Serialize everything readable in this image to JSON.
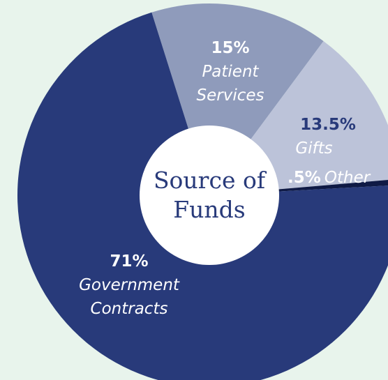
{
  "chart_data": {
    "type": "pie",
    "title": "Source of Funds",
    "categories": [
      "Patient Services",
      "Gifts",
      "Other",
      "Government Contracts"
    ],
    "values": [
      15,
      13.5,
      0.5,
      71
    ],
    "value_labels": [
      "15%",
      "13.5%",
      ".5%",
      "71%"
    ],
    "colors": [
      "#8f9bbb",
      "#bcc3d9",
      "#0f1a45",
      "#283a7a"
    ],
    "background": "#e8f4ec"
  }
}
